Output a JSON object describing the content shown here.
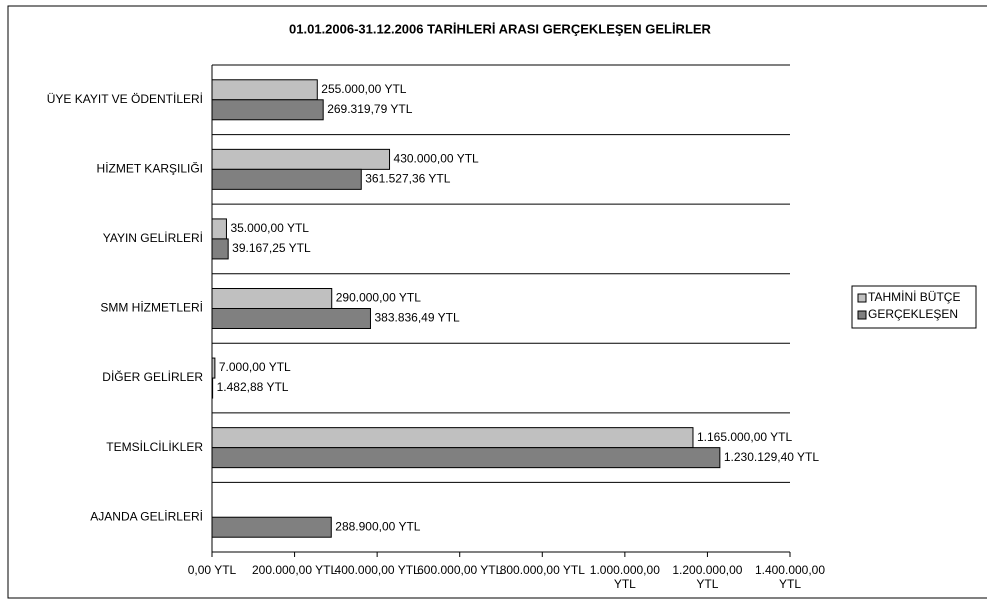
{
  "chart_data": {
    "type": "bar",
    "orientation": "horizontal",
    "title": "01.01.2006-31.12.2006 TARİHLERİ ARASI GERÇEKLEŞEN GELİRLER",
    "categories": [
      "ÜYE KAYIT VE ÖDENTİLERİ",
      "HİZMET KARŞILIĞI",
      "YAYIN GELİRLERİ",
      "SMM HİZMETLERİ",
      "DİĞER GELİRLER",
      "TEMSİLCİLİKLER",
      "AJANDA GELİRLERİ"
    ],
    "series": [
      {
        "name": "TAHMİNİ BÜTÇE",
        "color": "#c0c0c0",
        "values": [
          255000,
          430000,
          35000,
          290000,
          7000,
          1165000,
          null
        ],
        "value_labels": [
          "255.000,00 YTL",
          "430.000,00 YTL",
          "35.000,00 YTL",
          "290.000,00 YTL",
          "7.000,00 YTL",
          "1.165.000,00 YTL",
          null
        ]
      },
      {
        "name": "GERÇEKLEŞEN",
        "color": "#808080",
        "values": [
          269319.79,
          361527.36,
          39167.25,
          383836.49,
          1482.88,
          1230129.4,
          288900
        ],
        "value_labels": [
          "269.319,79 YTL",
          "361.527,36 YTL",
          "39.167,25 YTL",
          "383.836,49 YTL",
          "1.482,88 YTL",
          "1.230.129,40 YTL",
          "288.900,00 YTL"
        ]
      }
    ],
    "xlim": [
      0,
      1400000
    ],
    "xticks": [
      {
        "value": 0,
        "label": "0,00 YTL"
      },
      {
        "value": 200000,
        "label": "200.000,00 YTL"
      },
      {
        "value": 400000,
        "label": "400.000,00 YTL"
      },
      {
        "value": 600000,
        "label": "600.000,00 YTL"
      },
      {
        "value": 800000,
        "label": "800.000,00 YTL"
      },
      {
        "value": 1000000,
        "label": "1.000.000,00 YTL"
      },
      {
        "value": 1200000,
        "label": "1.200.000,00 YTL"
      },
      {
        "value": 1400000,
        "label": "1.400.000,00 YTL"
      }
    ],
    "legend": "right"
  }
}
